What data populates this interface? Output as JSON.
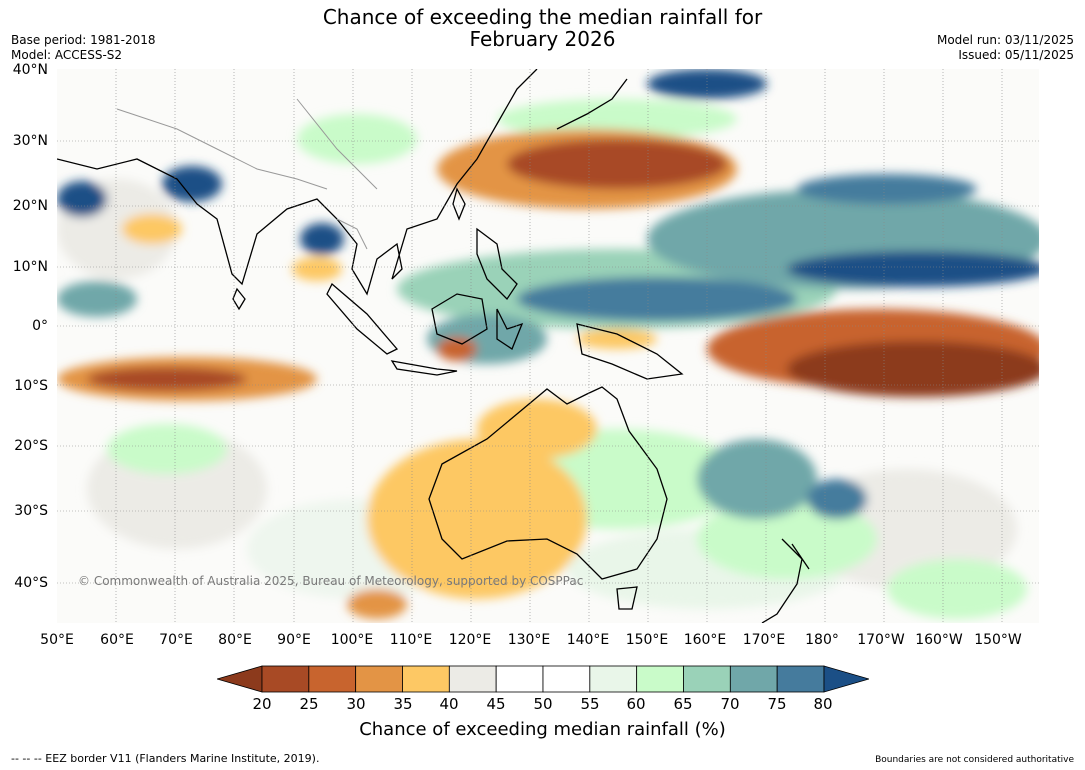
{
  "title": {
    "line1": "Chance of exceeding the median rainfall for",
    "line2": "February 2026"
  },
  "meta": {
    "base_period": "Base period: 1981-2018",
    "model": "Model: ACCESS-S2",
    "model_run": "Model run: 03/11/2025",
    "issued": "Issued: 05/11/2025"
  },
  "map": {
    "copyright": "© Commonwealth of Australia 2025, Bureau of Meteorology, supported by COSPPac",
    "lat_labels": [
      "40°N",
      "30°N",
      "20°N",
      "10°N",
      "0°",
      "10°S",
      "20°S",
      "30°S",
      "40°S"
    ],
    "lon_labels": [
      "50°E",
      "60°E",
      "70°E",
      "80°E",
      "90°E",
      "100°E",
      "110°E",
      "120°E",
      "130°E",
      "140°E",
      "150°E",
      "160°E",
      "170°E",
      "180°",
      "170°W",
      "160°W",
      "150°W"
    ]
  },
  "colorbar": {
    "ticks": [
      "20",
      "25",
      "30",
      "35",
      "40",
      "45",
      "50",
      "55",
      "60",
      "65",
      "70",
      "75",
      "80"
    ],
    "colors": [
      "#8c3a1c",
      "#a84a25",
      "#c8642e",
      "#e39445",
      "#fdc864",
      "#ecebe6",
      "#ffffff",
      "#ffffff",
      "#e9f6e9",
      "#c9fbc9",
      "#9ad2b8",
      "#70a7a9",
      "#457b9d",
      "#1b4f86"
    ],
    "label": "Chance of exceeding median rainfall (%)"
  },
  "footer": {
    "left": "--  --  -- EEZ border V11 (Flanders Marine Institute, 2019).",
    "right": "Boundaries are not considered authoritative"
  }
}
